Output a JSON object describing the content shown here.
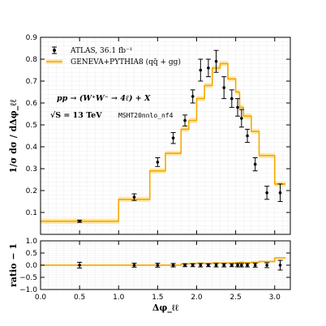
{
  "chart_data": [
    {
      "type": "line",
      "panel": "main",
      "ylabel": "1/σ dσ / dΔφ_ℓℓ",
      "ylim": [
        0.0,
        0.9
      ],
      "xlim": [
        0.0,
        3.2
      ],
      "yticks": [
        "0.1",
        "0.2",
        "0.3",
        "0.4",
        "0.5",
        "0.6",
        "0.7",
        "0.8",
        "0.9"
      ],
      "ytick_values": [
        0.1,
        0.2,
        0.3,
        0.4,
        0.5,
        0.6,
        0.7,
        0.8,
        0.9
      ],
      "annotations": {
        "process": "pp → (W⁺W⁻ → 4ℓ) + X",
        "energy": "√S = 13 TeV",
        "pdf": "MSHT20nnlo_nf4"
      },
      "legend": {
        "placement": "top-left",
        "data_label": "ATLAS, 36.1 fb⁻¹",
        "mc_label": "GENEVA+PYTHIA8 (qq̄ + gg)"
      },
      "colors": {
        "data": "#000000",
        "mc": "#f2a900",
        "mc_band": "#ffe7a8"
      },
      "series": [
        {
          "name": "GENEVA+PYTHIA8 (qq̄ + gg)",
          "style": "step",
          "bin_edges": [
            0.0,
            1.0,
            1.4,
            1.6,
            1.8,
            1.9,
            2.0,
            2.1,
            2.2,
            2.3,
            2.4,
            2.5,
            2.55,
            2.6,
            2.7,
            2.8,
            3.0,
            3.14
          ],
          "values": [
            0.06,
            0.16,
            0.29,
            0.37,
            0.48,
            0.52,
            0.62,
            0.68,
            0.76,
            0.78,
            0.71,
            0.65,
            0.58,
            0.54,
            0.47,
            0.36,
            0.23
          ],
          "band_half_width": 0.012
        },
        {
          "name": "ATLAS, 36.1 fb⁻¹",
          "style": "points-with-errorbars",
          "x": [
            0.5,
            1.2,
            1.5,
            1.7,
            1.85,
            1.95,
            2.05,
            2.15,
            2.25,
            2.35,
            2.45,
            2.525,
            2.575,
            2.65,
            2.75,
            2.9,
            3.07
          ],
          "y": [
            0.06,
            0.17,
            0.33,
            0.44,
            0.52,
            0.63,
            0.75,
            0.76,
            0.79,
            0.67,
            0.62,
            0.58,
            0.53,
            0.45,
            0.32,
            0.19,
            0.19
          ],
          "y_err": [
            0.005,
            0.015,
            0.02,
            0.025,
            0.025,
            0.03,
            0.05,
            0.04,
            0.05,
            0.05,
            0.04,
            0.04,
            0.04,
            0.03,
            0.03,
            0.03,
            0.04
          ]
        }
      ]
    },
    {
      "type": "line",
      "panel": "ratio",
      "ylabel": "ratio − 1",
      "xlabel": "Δφ_ℓℓ",
      "ylim": [
        -1.0,
        1.0
      ],
      "xlim": [
        0.0,
        3.2
      ],
      "yticks": [
        "−1.0",
        "−0.5",
        "0.0",
        "0.5",
        "1.0"
      ],
      "ytick_values": [
        -1.0,
        -0.5,
        0.0,
        0.5,
        1.0
      ],
      "xticks": [
        "0.0",
        "0.5",
        "1.0",
        "1.5",
        "2.0",
        "2.5",
        "3.0"
      ],
      "xtick_values": [
        0.0,
        0.5,
        1.0,
        1.5,
        2.0,
        2.5,
        3.0
      ],
      "series": [
        {
          "name": "GENEVA+PYTHIA8 (qq̄ + gg)",
          "style": "step",
          "bin_edges": [
            0.0,
            1.0,
            1.4,
            1.6,
            1.8,
            1.9,
            2.0,
            2.1,
            2.2,
            2.3,
            2.4,
            2.5,
            2.55,
            2.6,
            2.7,
            2.8,
            3.0,
            3.14
          ],
          "values": [
            0.0,
            0.0,
            0.0,
            0.0,
            0.05,
            0.07,
            0.08,
            0.07,
            0.09,
            0.08,
            0.09,
            0.1,
            0.12,
            0.1,
            0.12,
            0.15,
            0.3
          ],
          "band_half_width": 0.04
        },
        {
          "name": "ATLAS, 36.1 fb⁻¹",
          "style": "points-with-errorbars",
          "x": [
            0.5,
            1.2,
            1.5,
            1.7,
            1.85,
            1.95,
            2.05,
            2.15,
            2.25,
            2.35,
            2.45,
            2.525,
            2.575,
            2.65,
            2.75,
            2.9,
            3.07
          ],
          "y": [
            0.0,
            0.0,
            0.0,
            0.0,
            0.0,
            0.0,
            0.0,
            0.0,
            0.0,
            0.0,
            0.0,
            0.0,
            0.0,
            0.0,
            0.0,
            0.0,
            0.0
          ],
          "y_err": [
            0.12,
            0.08,
            0.08,
            0.07,
            0.06,
            0.06,
            0.07,
            0.06,
            0.07,
            0.07,
            0.06,
            0.07,
            0.07,
            0.07,
            0.08,
            0.1,
            0.2
          ]
        }
      ]
    }
  ]
}
